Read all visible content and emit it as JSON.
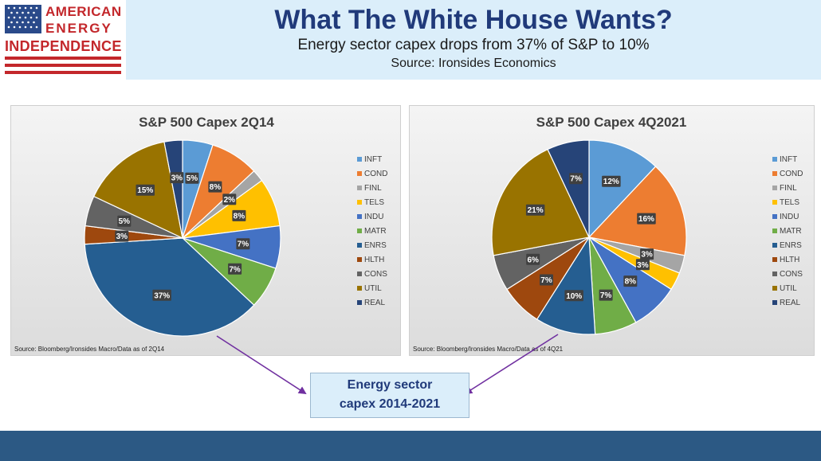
{
  "logo": {
    "line1": "AMERICAN",
    "line2": "ENERGY",
    "line3": "INDEPENDENCE"
  },
  "header": {
    "title": "What The White House Wants?",
    "subtitle": "Energy sector capex drops from 37% of S&P to 10%",
    "source": "Source: Ironsides Economics"
  },
  "callout": {
    "line1": "Energy sector",
    "line2": "capex 2014-2021"
  },
  "colors": {
    "INFT": "#5b9bd5",
    "COND": "#ed7d31",
    "FINL": "#a5a5a5",
    "TELS": "#ffc000",
    "INDU": "#4472c4",
    "MATR": "#70ad47",
    "ENRS": "#255e91",
    "HLTH": "#9e480e",
    "CONS": "#636363",
    "UTIL": "#997300",
    "REAL": "#264478"
  },
  "chart_data": [
    {
      "type": "pie",
      "title": "S&P 500 Capex 2Q14",
      "source": "Source: Bloomberg/Ironsides Macro/Data as of 2Q14",
      "categories": [
        "INFT",
        "COND",
        "FINL",
        "TELS",
        "INDU",
        "MATR",
        "ENRS",
        "HLTH",
        "CONS",
        "UTIL",
        "REAL"
      ],
      "values": [
        5,
        8,
        2,
        8,
        7,
        7,
        37,
        3,
        5,
        15,
        3
      ],
      "labels": [
        "5%",
        "8%",
        "2%",
        "8%",
        "7%",
        "7%",
        "37%",
        "3%",
        "5%",
        "15%",
        "3%"
      ],
      "legend_position": "right"
    },
    {
      "type": "pie",
      "title": "S&P 500 Capex 4Q2021",
      "source": "Source: Bloomberg/Ironsides Macro/Data as of 4Q21",
      "categories": [
        "INFT",
        "COND",
        "FINL",
        "TELS",
        "INDU",
        "MATR",
        "ENRS",
        "HLTH",
        "CONS",
        "UTIL",
        "REAL"
      ],
      "values": [
        12,
        16,
        3,
        3,
        8,
        7,
        10,
        7,
        6,
        21,
        7
      ],
      "labels": [
        "12%",
        "16%",
        "3%",
        "3%",
        "8%",
        "7%",
        "10%",
        "7%",
        "6%",
        "21%",
        "7%"
      ],
      "legend_position": "right"
    }
  ]
}
